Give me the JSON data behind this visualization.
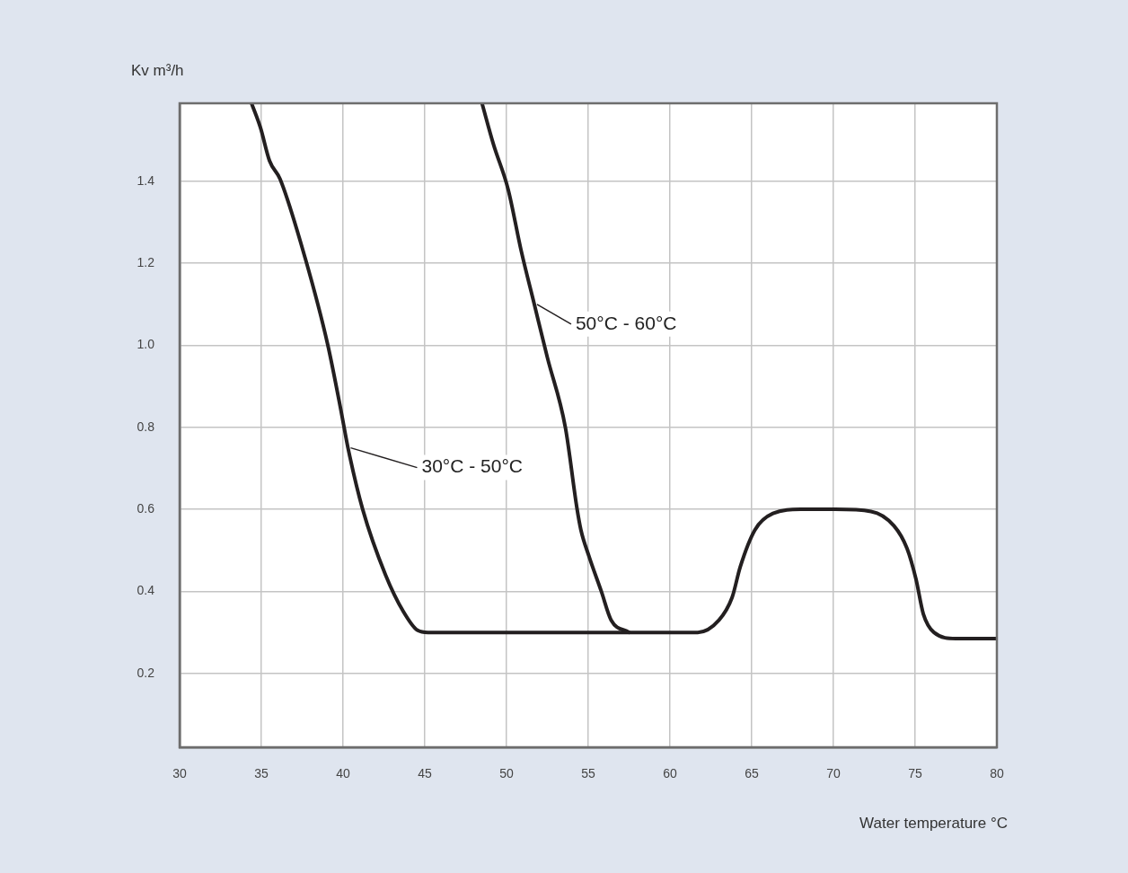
{
  "chart_data": {
    "type": "line",
    "ylabel": "Kv m³/h",
    "xlabel": "Water temperature °C",
    "xlim": [
      30,
      80
    ],
    "xticks": [
      30,
      35,
      40,
      45,
      50,
      55,
      60,
      65,
      70,
      75,
      80
    ],
    "ylim": [
      0.02,
      1.59
    ],
    "yticks": [
      0.2,
      0.4,
      0.6,
      0.8,
      {
        "value": 1,
        "label": "1.0"
      },
      1.2,
      1.4
    ],
    "grid": true,
    "legend": "center",
    "marker": "none",
    "line_style": "solid",
    "series": [
      {
        "name": "30°C - 50°C",
        "color": "#231f20",
        "x": [
          34.4,
          34.95,
          35.5,
          36.15,
          37.7,
          39.07,
          39.9,
          40.3,
          41.2,
          42.6,
          43.7,
          44.56,
          45.2,
          61.7,
          63,
          63.8,
          64.3,
          65.2,
          66.3,
          68,
          70.1,
          72.3,
          73.7,
          74.5,
          75.05,
          75.5,
          76.15,
          77.5,
          80
        ],
        "values": [
          1.59,
          1.53,
          1.45,
          1.405,
          1.21,
          1.0,
          0.835,
          0.75,
          0.6,
          0.44,
          0.35,
          0.305,
          0.3,
          0.3,
          0.33,
          0.385,
          0.46,
          0.55,
          0.59,
          0.6,
          0.6,
          0.595,
          0.56,
          0.505,
          0.43,
          0.345,
          0.3,
          0.285,
          0.285
        ]
      },
      {
        "name": "50°C - 60°C",
        "color": "#231f20",
        "x": [
          48.5,
          49.2,
          50.1,
          50.9,
          51.7,
          52.5,
          53.6,
          54.3,
          54.55,
          55.05,
          55.8,
          56.4,
          57.5
        ],
        "values": [
          1.59,
          1.49,
          1.38,
          1.23,
          1.1,
          0.97,
          0.8,
          0.605,
          0.55,
          0.485,
          0.4,
          0.33,
          0.3
        ]
      }
    ]
  }
}
